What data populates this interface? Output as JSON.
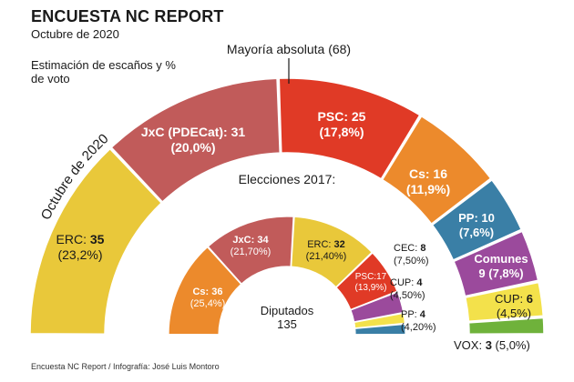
{
  "header": {
    "title": "ENCUESTA NC REPORT",
    "subtitle": "Octubre de 2020",
    "estimation_label": "Estimación de escaños y % de voto"
  },
  "footer": {
    "credit": "Encuesta NC Report / Infografía: José Luis Montoro"
  },
  "chart_data": [
    {
      "type": "pie",
      "subtype": "parliament-semicircle",
      "title": "Octubre de 2020",
      "majority_label": "Mayoría absoluta (68)",
      "seat_total": 135,
      "series": [
        {
          "party": "ERC",
          "seats": 35,
          "vote_pct": "23,2%",
          "color": "#e9c83a",
          "label_name": "ERC: ",
          "label_pct": "(23,2%)"
        },
        {
          "party": "JxC (PDECat)",
          "seats": 31,
          "vote_pct": "20,0%",
          "color": "#c15b5a",
          "label_name": "JxC (PDECat): 31",
          "label_pct": "(20,0%)"
        },
        {
          "party": "PSC",
          "seats": 25,
          "vote_pct": "17,8%",
          "color": "#e03a26",
          "label_name": "PSC: 25",
          "label_pct": "(17,8%)"
        },
        {
          "party": "Cs",
          "seats": 16,
          "vote_pct": "11,9%",
          "color": "#ec8a2c",
          "label_name": "Cs: 16",
          "label_pct": "(11,9%)"
        },
        {
          "party": "PP",
          "seats": 10,
          "vote_pct": "7,6%",
          "color": "#3a7fa6",
          "label_name": "PP: 10",
          "label_pct": "(7,6%)"
        },
        {
          "party": "Comunes",
          "seats": 9,
          "vote_pct": "7,8%",
          "color": "#9b4a9c",
          "label_name": "Comunes",
          "label_pct": "9 (7,8%)"
        },
        {
          "party": "CUP",
          "seats": 6,
          "vote_pct": "4,5%",
          "color": "#f3e14b",
          "label_name": "CUP: ",
          "label_pct": "(4,5%)"
        },
        {
          "party": "VOX",
          "seats": 3,
          "vote_pct": "5,0%",
          "color": "#6fb23b",
          "label_name": "VOX: ",
          "label_pct": "(5,0%)"
        }
      ]
    },
    {
      "type": "pie",
      "subtype": "parliament-semicircle",
      "title": "Elecciones 2017:",
      "center_label": "Diputados",
      "seat_total": 135,
      "series": [
        {
          "party": "Cs",
          "seats": 36,
          "vote_pct": "25,4%",
          "color": "#ec8a2c",
          "label_name": "Cs: 36",
          "label_pct": "(25,4%)"
        },
        {
          "party": "JxC",
          "seats": 34,
          "vote_pct": "21,70%",
          "color": "#c15b5a",
          "label_name": "JxC: 34",
          "label_pct": "(21,70%)"
        },
        {
          "party": "ERC",
          "seats": 32,
          "vote_pct": "21,40%",
          "color": "#e9c83a",
          "label_name": "ERC: ",
          "label_pct": "(21,40%)"
        },
        {
          "party": "PSC",
          "seats": 17,
          "vote_pct": "13,9%",
          "color": "#e03a26",
          "label_name": "PSC:17",
          "label_pct": "(13,9%)"
        },
        {
          "party": "CEC",
          "seats": 8,
          "vote_pct": "7,50%",
          "color": "#9b4a9c",
          "label_name": "CEC: ",
          "label_pct": "(7,50%)"
        },
        {
          "party": "CUP",
          "seats": 4,
          "vote_pct": "4,50%",
          "color": "#f3e14b",
          "label_name": "CUP: ",
          "label_pct": "(4,50%)"
        },
        {
          "party": "PP",
          "seats": 4,
          "vote_pct": "4,20%",
          "color": "#3a7fa6",
          "label_name": "PP: ",
          "label_pct": "(4,20%)"
        }
      ]
    }
  ]
}
